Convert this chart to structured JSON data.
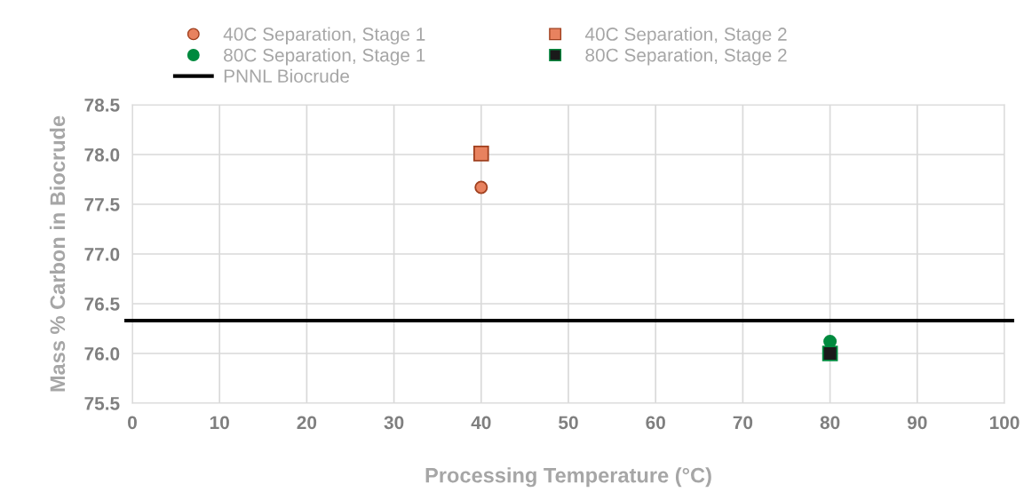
{
  "chart_data": {
    "type": "scatter",
    "xlabel": "Processing Temperature (°C)",
    "ylabel": "Mass % Carbon in Biocrude",
    "xlim": [
      0,
      100
    ],
    "xticks": [
      0,
      10,
      20,
      30,
      40,
      50,
      60,
      70,
      80,
      90,
      100
    ],
    "ylim": [
      75.5,
      78.5
    ],
    "yticks": [
      {
        "value": 75.5,
        "label": "75.5"
      },
      {
        "value": 76.0,
        "label": "76.0"
      },
      {
        "value": 76.5,
        "label": "76.5"
      },
      {
        "value": 77.0,
        "label": "77.0"
      },
      {
        "value": 77.5,
        "label": "77.5"
      },
      {
        "value": 78.0,
        "label": "78.0"
      },
      {
        "value": 78.5,
        "label": "78.5"
      }
    ],
    "grid": true,
    "legend": "top",
    "x": [
      40,
      80
    ],
    "series": [
      {
        "name": "40C Separation, Stage 1",
        "color": "#e8825f",
        "marker": "circle",
        "values": [
          77.67,
          null
        ]
      },
      {
        "name": "40C Separation, Stage 2",
        "color": "#e8825f",
        "marker": "square",
        "values": [
          78.01,
          null
        ]
      },
      {
        "name": "80C Separation, Stage 1",
        "color": "#008a3e",
        "marker": "circle",
        "values": [
          null,
          76.12
        ]
      },
      {
        "name": "80C Separation, Stage 2",
        "color": "#1a1a1a",
        "marker": "square",
        "values": [
          null,
          76.0
        ]
      }
    ],
    "ref_lines": [
      {
        "axis": "y",
        "value": 76.33,
        "label": "PNNL Biocrude",
        "color": "#000000",
        "line_style": "solid"
      }
    ]
  }
}
